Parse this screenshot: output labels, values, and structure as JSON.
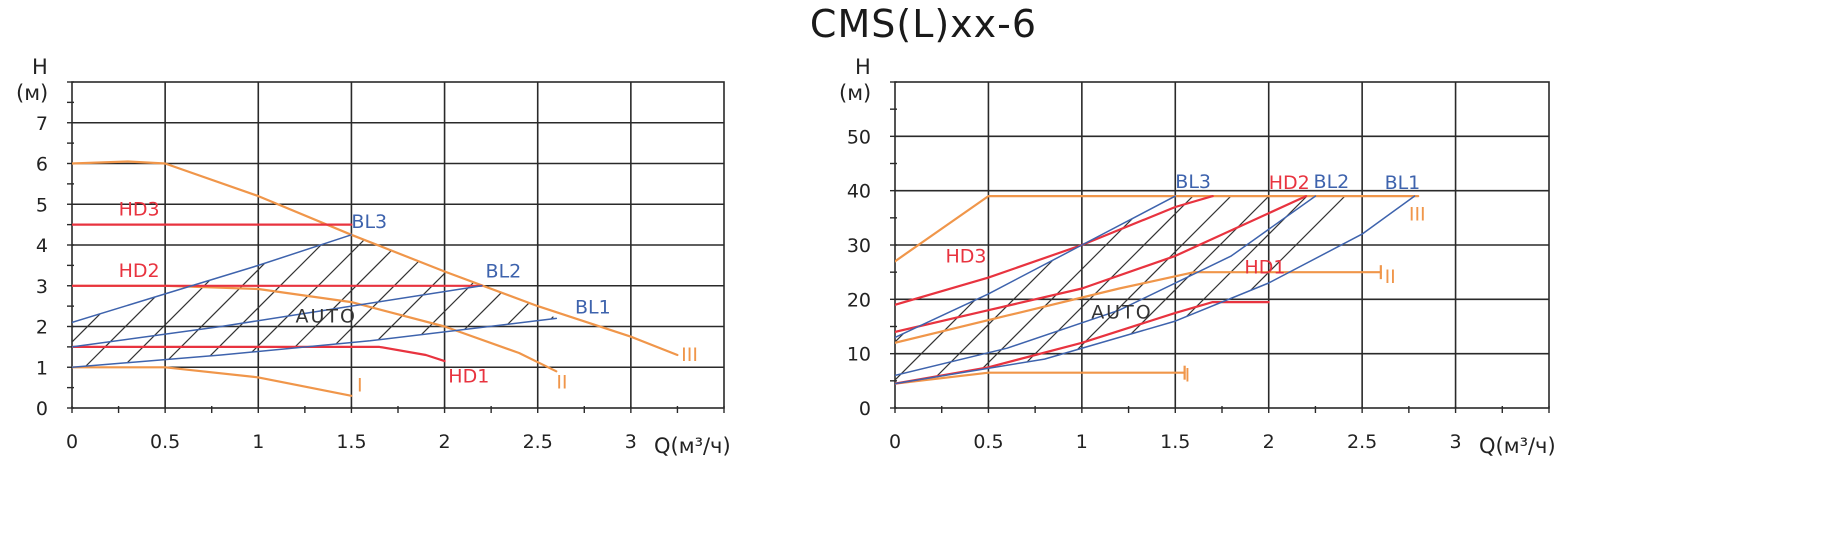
{
  "page": {
    "title": "CMS(L)xx-6"
  },
  "colors": {
    "red": "#e8333f",
    "blue": "#3e63ad",
    "orange": "#f0964a",
    "grid": "#2a2a2a",
    "hatch": "#333333"
  },
  "chart_data": [
    {
      "type": "line",
      "id": "left",
      "xlabel": "Q(м³/ч)",
      "ylabel_top": "H",
      "ylabel_bottom": "(м)",
      "xlim": [
        0,
        3.5
      ],
      "ylim": [
        0,
        8
      ],
      "xticks": [
        "0",
        "0.5",
        "1",
        "1.5",
        "2",
        "2.5",
        "3"
      ],
      "yticks": [
        "0",
        "1",
        "2",
        "3",
        "4",
        "5",
        "6",
        "7"
      ],
      "auto_label": "AUTO",
      "series": [
        {
          "name": "III",
          "color": "orange",
          "points": [
            [
              0,
              6
            ],
            [
              0.3,
              6.05
            ],
            [
              0.5,
              6
            ],
            [
              1.0,
              5.2
            ],
            [
              1.5,
              4.25
            ],
            [
              2.0,
              3.35
            ],
            [
              2.5,
              2.5
            ],
            [
              3.0,
              1.75
            ],
            [
              3.25,
              1.3
            ]
          ]
        },
        {
          "name": "II",
          "color": "orange",
          "points": [
            [
              0,
              3
            ],
            [
              0.5,
              3
            ],
            [
              1.0,
              2.92
            ],
            [
              1.5,
              2.6
            ],
            [
              2.0,
              2.0
            ],
            [
              2.4,
              1.35
            ],
            [
              2.6,
              0.9
            ]
          ]
        },
        {
          "name": "I",
          "color": "orange",
          "points": [
            [
              0,
              1
            ],
            [
              0.5,
              1
            ],
            [
              1.0,
              0.75
            ],
            [
              1.5,
              0.3
            ]
          ]
        },
        {
          "name": "HD3",
          "color": "red",
          "points": [
            [
              0,
              4.5
            ],
            [
              1.5,
              4.5
            ]
          ]
        },
        {
          "name": "HD2",
          "color": "red",
          "points": [
            [
              0,
              3
            ],
            [
              2.2,
              3
            ]
          ]
        },
        {
          "name": "HD1",
          "color": "red",
          "points": [
            [
              0,
              1.5
            ],
            [
              1.65,
              1.5
            ],
            [
              1.9,
              1.3
            ],
            [
              2.0,
              1.15
            ]
          ]
        },
        {
          "name": "BL3",
          "color": "blue",
          "points": [
            [
              0,
              2.1
            ],
            [
              0.5,
              2.8
            ],
            [
              1.0,
              3.5
            ],
            [
              1.5,
              4.25
            ]
          ]
        },
        {
          "name": "BL2",
          "color": "blue",
          "points": [
            [
              0,
              1.5
            ],
            [
              0.8,
              2.0
            ],
            [
              1.5,
              2.5
            ],
            [
              2.2,
              3.0
            ]
          ]
        },
        {
          "name": "BL1",
          "color": "blue",
          "points": [
            [
              0,
              1.0
            ],
            [
              0.8,
              1.3
            ],
            [
              1.6,
              1.65
            ],
            [
              2.6,
              2.2
            ]
          ]
        }
      ],
      "labels": [
        {
          "text": "HD3",
          "color": "red",
          "x": 0.25,
          "y": 4.72
        },
        {
          "text": "HD2",
          "color": "red",
          "x": 0.25,
          "y": 3.22
        },
        {
          "text": "HD1",
          "color": "red",
          "x": 2.02,
          "y": 0.62
        },
        {
          "text": "BL3",
          "color": "blue",
          "x": 1.5,
          "y": 4.42
        },
        {
          "text": "BL2",
          "color": "blue",
          "x": 2.22,
          "y": 3.2
        },
        {
          "text": "BL1",
          "color": "blue",
          "x": 2.7,
          "y": 2.32
        },
        {
          "text": "III",
          "color": "orange",
          "x": 3.27,
          "y": 1.15
        },
        {
          "text": "II",
          "color": "orange",
          "x": 2.6,
          "y": 0.48
        },
        {
          "text": "I",
          "color": "orange",
          "x": 1.53,
          "y": 0.4
        }
      ]
    },
    {
      "type": "line",
      "id": "right",
      "xlabel": "Q(м³/ч)",
      "ylabel_top": "H",
      "ylabel_bottom": "(м)",
      "xlim": [
        0,
        3.5
      ],
      "ylim": [
        0,
        60
      ],
      "xticks": [
        "0",
        "0.5",
        "1",
        "1.5",
        "2",
        "2.5",
        "3"
      ],
      "yticks": [
        "0",
        "10",
        "20",
        "30",
        "40",
        "50"
      ],
      "auto_label": "AUTO",
      "series": [
        {
          "name": "III",
          "color": "orange",
          "points": [
            [
              0,
              27
            ],
            [
              0.5,
              39
            ],
            [
              2.8,
              39
            ]
          ]
        },
        {
          "name": "II",
          "color": "orange",
          "points": [
            [
              0,
              12
            ],
            [
              0.6,
              17
            ],
            [
              1.2,
              22
            ],
            [
              1.6,
              25
            ],
            [
              2.6,
              25
            ]
          ]
        },
        {
          "name": "I",
          "color": "orange",
          "points": [
            [
              0,
              4.5
            ],
            [
              0.5,
              6.5
            ],
            [
              1.55,
              6.5
            ]
          ]
        },
        {
          "name": "HD3",
          "color": "red",
          "points": [
            [
              0,
              19
            ],
            [
              0.5,
              24
            ],
            [
              1.0,
              30
            ],
            [
              1.5,
              37
            ],
            [
              1.7,
              39
            ]
          ]
        },
        {
          "name": "HD2",
          "color": "red",
          "points": [
            [
              0,
              14
            ],
            [
              0.5,
              18
            ],
            [
              1.0,
              22
            ],
            [
              1.5,
              28
            ],
            [
              2.2,
              39
            ]
          ]
        },
        {
          "name": "HD1",
          "color": "red",
          "points": [
            [
              0,
              4.5
            ],
            [
              0.5,
              7.5
            ],
            [
              1.0,
              12
            ],
            [
              1.5,
              17.5
            ],
            [
              1.7,
              19.5
            ],
            [
              2.0,
              19.5
            ]
          ]
        },
        {
          "name": "BL3",
          "color": "blue",
          "points": [
            [
              0,
              13
            ],
            [
              0.5,
              21
            ],
            [
              1.0,
              30
            ],
            [
              1.5,
              39
            ]
          ]
        },
        {
          "name": "BL2",
          "color": "blue",
          "points": [
            [
              0,
              6
            ],
            [
              0.6,
              11
            ],
            [
              1.2,
              18
            ],
            [
              1.8,
              28
            ],
            [
              2.25,
              39
            ]
          ]
        },
        {
          "name": "BL1",
          "color": "blue",
          "points": [
            [
              0,
              4.5
            ],
            [
              0.8,
              9
            ],
            [
              1.5,
              16
            ],
            [
              2.0,
              23
            ],
            [
              2.5,
              32
            ],
            [
              2.78,
              39
            ]
          ]
        }
      ],
      "labels": [
        {
          "text": "HD3",
          "color": "red",
          "x": 0.27,
          "y": 26.8
        },
        {
          "text": "HD2",
          "color": "red",
          "x": 2.0,
          "y": 40.3
        },
        {
          "text": "HD1",
          "color": "red",
          "x": 1.87,
          "y": 24.8
        },
        {
          "text": "BL3",
          "color": "blue",
          "x": 1.5,
          "y": 40.5
        },
        {
          "text": "BL2",
          "color": "blue",
          "x": 2.24,
          "y": 40.5
        },
        {
          "text": "BL1",
          "color": "blue",
          "x": 2.62,
          "y": 40.3
        },
        {
          "text": "III",
          "color": "orange",
          "x": 2.75,
          "y": 34.5
        },
        {
          "text": "II",
          "color": "orange",
          "x": 2.62,
          "y": 23.0
        },
        {
          "text": "I",
          "color": "orange",
          "x": 1.55,
          "y": 4.9
        }
      ]
    }
  ]
}
